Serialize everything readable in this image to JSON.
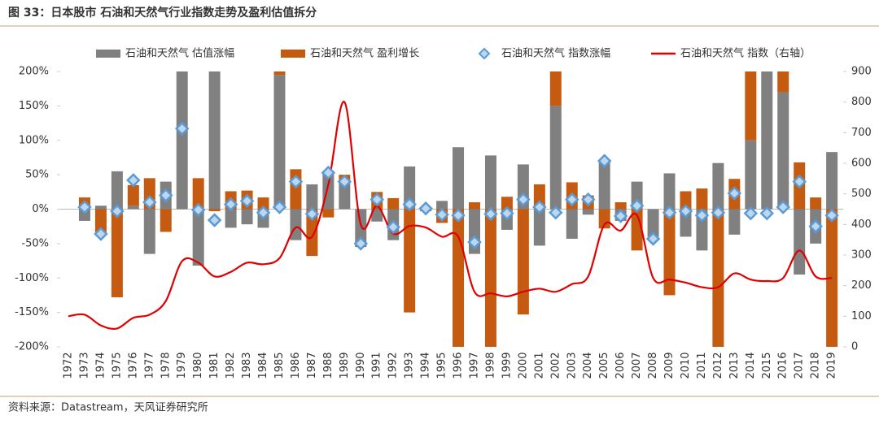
{
  "chart_data": {
    "type": "combo",
    "title": "图 33：日本股市 石油和天然气行业指数走势及盈利估值拆分",
    "source": "资料来源：Datastream，天风证券研究所",
    "categories": [
      "1972",
      "1973",
      "1974",
      "1975",
      "1976",
      "1977",
      "1978",
      "1979",
      "1980",
      "1981",
      "1982",
      "1983",
      "1984",
      "1985",
      "1986",
      "1987",
      "1988",
      "1989",
      "1990",
      "1991",
      "1992",
      "1993",
      "1994",
      "1995",
      "1996",
      "1997",
      "1998",
      "1999",
      "2000",
      "2001",
      "2002",
      "2003",
      "2004",
      "2005",
      "2006",
      "2007",
      "2008",
      "2009",
      "2010",
      "2011",
      "2012",
      "2013",
      "2014",
      "2015",
      "2016",
      "2017",
      "2018",
      "2019"
    ],
    "series": [
      {
        "name": "石油和天然气 估值涨幅",
        "kind": "bar",
        "color": "#808080",
        "values": [
          null,
          -17,
          5,
          55,
          5,
          -65,
          40,
          200,
          -82,
          200,
          -27,
          -22,
          -27,
          195,
          -45,
          36,
          55,
          40,
          -50,
          -18,
          -45,
          62,
          3,
          12,
          90,
          -65,
          78,
          -30,
          65,
          -53,
          150,
          -43,
          -8,
          68,
          -17,
          40,
          -40,
          52,
          -40,
          -60,
          67,
          -37,
          100,
          210,
          170,
          -95,
          -50,
          83
        ]
      },
      {
        "name": "石油和天然气 盈利增长",
        "kind": "bar",
        "color": "#c55a11",
        "values": [
          null,
          17,
          -38,
          -128,
          30,
          45,
          -33,
          0,
          45,
          -3,
          26,
          27,
          17,
          10,
          58,
          -68,
          -12,
          10,
          -5,
          25,
          16,
          -150,
          -3,
          -20,
          -200,
          10,
          -200,
          18,
          -153,
          36,
          50,
          39,
          20,
          -28,
          10,
          -60,
          0,
          -125,
          26,
          30,
          -200,
          44,
          130,
          0,
          40,
          68,
          17,
          -200
        ]
      },
      {
        "name": "石油和天然气 指数涨幅",
        "kind": "diamond",
        "color": "#5b9bd5",
        "values": [
          null,
          3,
          -36,
          -3,
          42,
          10,
          20,
          117,
          -1,
          -16,
          7,
          12,
          -5,
          3,
          40,
          -7,
          53,
          40,
          -50,
          14,
          -26,
          7,
          1,
          -8,
          -9,
          -48,
          -7,
          -6,
          14,
          3,
          -5,
          14,
          14,
          70,
          -10,
          5,
          -43,
          -5,
          -3,
          -9,
          -5,
          23,
          -6,
          -6,
          3,
          40,
          -25,
          -9
        ]
      },
      {
        "name": "石油和天然气 指数（右轴）",
        "kind": "line",
        "axis": "y2",
        "color": "#e00000",
        "values": [
          100,
          105,
          70,
          60,
          95,
          105,
          150,
          280,
          275,
          230,
          245,
          275,
          270,
          290,
          390,
          360,
          530,
          800,
          400,
          460,
          370,
          395,
          390,
          360,
          360,
          180,
          175,
          165,
          180,
          190,
          180,
          205,
          230,
          400,
          380,
          430,
          225,
          220,
          210,
          195,
          195,
          240,
          220,
          215,
          225,
          315,
          230,
          225
        ]
      }
    ],
    "ylim": [
      -200,
      200
    ],
    "yticks": [
      {
        "value": -200,
        "label": "-200%"
      },
      {
        "value": -150,
        "label": "-150%"
      },
      {
        "value": -100,
        "label": "-100%"
      },
      {
        "value": -50,
        "label": "-50%"
      },
      {
        "value": 0,
        "label": "0%"
      },
      {
        "value": 50,
        "label": "50%"
      },
      {
        "value": 100,
        "label": "100%"
      },
      {
        "value": 150,
        "label": "150%"
      },
      {
        "value": 200,
        "label": "200%"
      }
    ],
    "y2lim": [
      0,
      900
    ],
    "y2ticks": [
      0,
      100,
      200,
      300,
      400,
      500,
      600,
      700,
      800,
      900
    ]
  }
}
